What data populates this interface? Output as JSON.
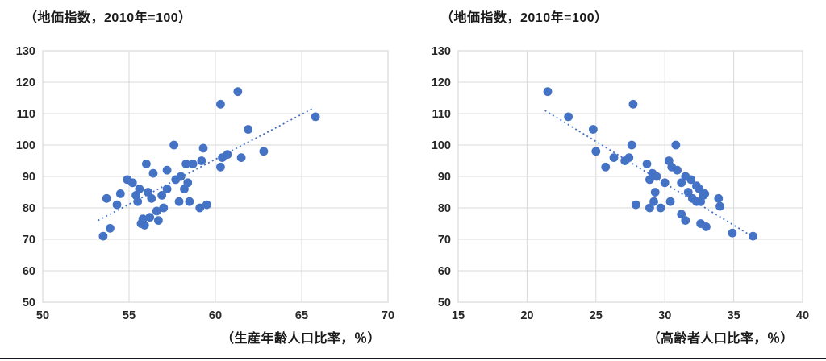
{
  "accent_color": "#4472C4",
  "grid_color": "#D9D9D9",
  "text_color": "#262626",
  "chart_data": [
    {
      "type": "scatter",
      "title": "（地価指数，2010年=100）",
      "xlabel": "（生産年齢人口比率，％）",
      "ylabel": "",
      "xlim": [
        50,
        70
      ],
      "xticks": [
        "50",
        "55",
        "60",
        "65",
        "70"
      ],
      "ylim": [
        50,
        130
      ],
      "yticks": [
        "50",
        "60",
        "70",
        "80",
        "90",
        "100",
        "110",
        "120",
        "130"
      ],
      "grid": true,
      "legend": false,
      "marker_color": "#4472C4",
      "trendline": {
        "style": "dotted",
        "x1": 53.2,
        "y1": 76,
        "x2": 65.6,
        "y2": 111.5
      },
      "points": [
        [
          53.5,
          71
        ],
        [
          53.7,
          83
        ],
        [
          53.9,
          73.5
        ],
        [
          54.3,
          81
        ],
        [
          54.5,
          84.5
        ],
        [
          54.9,
          89
        ],
        [
          55.2,
          88
        ],
        [
          55.4,
          84
        ],
        [
          55.5,
          82
        ],
        [
          55.6,
          86
        ],
        [
          55.7,
          75
        ],
        [
          55.8,
          76.5
        ],
        [
          55.9,
          74.5
        ],
        [
          56.0,
          94
        ],
        [
          56.1,
          85
        ],
        [
          56.2,
          77
        ],
        [
          56.3,
          83
        ],
        [
          56.4,
          91
        ],
        [
          56.6,
          79
        ],
        [
          56.7,
          76
        ],
        [
          56.9,
          84
        ],
        [
          57.0,
          80
        ],
        [
          57.2,
          92
        ],
        [
          57.2,
          86
        ],
        [
          57.6,
          100
        ],
        [
          57.7,
          89
        ],
        [
          57.9,
          82
        ],
        [
          58.0,
          90
        ],
        [
          58.2,
          86
        ],
        [
          58.3,
          94
        ],
        [
          58.4,
          88
        ],
        [
          58.5,
          82
        ],
        [
          58.7,
          94
        ],
        [
          59.1,
          80
        ],
        [
          59.2,
          95
        ],
        [
          59.3,
          99
        ],
        [
          59.5,
          81
        ],
        [
          60.3,
          93
        ],
        [
          60.3,
          113
        ],
        [
          60.4,
          96
        ],
        [
          60.7,
          97
        ],
        [
          61.3,
          117
        ],
        [
          61.5,
          96
        ],
        [
          61.9,
          105
        ],
        [
          62.8,
          98
        ],
        [
          65.8,
          109
        ]
      ]
    },
    {
      "type": "scatter",
      "title": "（地価指数，2010年=100）",
      "xlabel": "（高齢者人口比率，％）",
      "ylabel": "",
      "xlim": [
        15,
        40
      ],
      "xticks": [
        "15",
        "20",
        "25",
        "30",
        "35",
        "40"
      ],
      "ylim": [
        50,
        130
      ],
      "yticks": [
        "50",
        "60",
        "70",
        "80",
        "90",
        "100",
        "110",
        "120",
        "130"
      ],
      "grid": true,
      "legend": false,
      "marker_color": "#4472C4",
      "trendline": {
        "style": "dotted",
        "x1": 21.3,
        "y1": 111,
        "x2": 36.5,
        "y2": 70.5
      },
      "points": [
        [
          21.5,
          117
        ],
        [
          23.0,
          109
        ],
        [
          24.8,
          105
        ],
        [
          25.0,
          98
        ],
        [
          25.7,
          93
        ],
        [
          26.3,
          96
        ],
        [
          27.1,
          95
        ],
        [
          27.4,
          96
        ],
        [
          27.6,
          100
        ],
        [
          27.7,
          113
        ],
        [
          27.9,
          81
        ],
        [
          28.7,
          94
        ],
        [
          28.9,
          89
        ],
        [
          28.9,
          80
        ],
        [
          29.1,
          91
        ],
        [
          29.2,
          82
        ],
        [
          29.3,
          85
        ],
        [
          29.4,
          90
        ],
        [
          29.7,
          80
        ],
        [
          30.0,
          88
        ],
        [
          30.3,
          95
        ],
        [
          30.4,
          82
        ],
        [
          30.5,
          93
        ],
        [
          30.8,
          100
        ],
        [
          30.9,
          92
        ],
        [
          31.2,
          88
        ],
        [
          31.2,
          78
        ],
        [
          31.5,
          90
        ],
        [
          31.5,
          76
        ],
        [
          31.7,
          85
        ],
        [
          31.9,
          89
        ],
        [
          32.0,
          83
        ],
        [
          32.3,
          87
        ],
        [
          32.3,
          82
        ],
        [
          32.5,
          86
        ],
        [
          32.6,
          82
        ],
        [
          32.6,
          75
        ],
        [
          32.8,
          84
        ],
        [
          32.9,
          84.5
        ],
        [
          33.0,
          74
        ],
        [
          33.9,
          83
        ],
        [
          34.0,
          80.5
        ],
        [
          34.9,
          72
        ],
        [
          36.4,
          71
        ]
      ]
    }
  ]
}
